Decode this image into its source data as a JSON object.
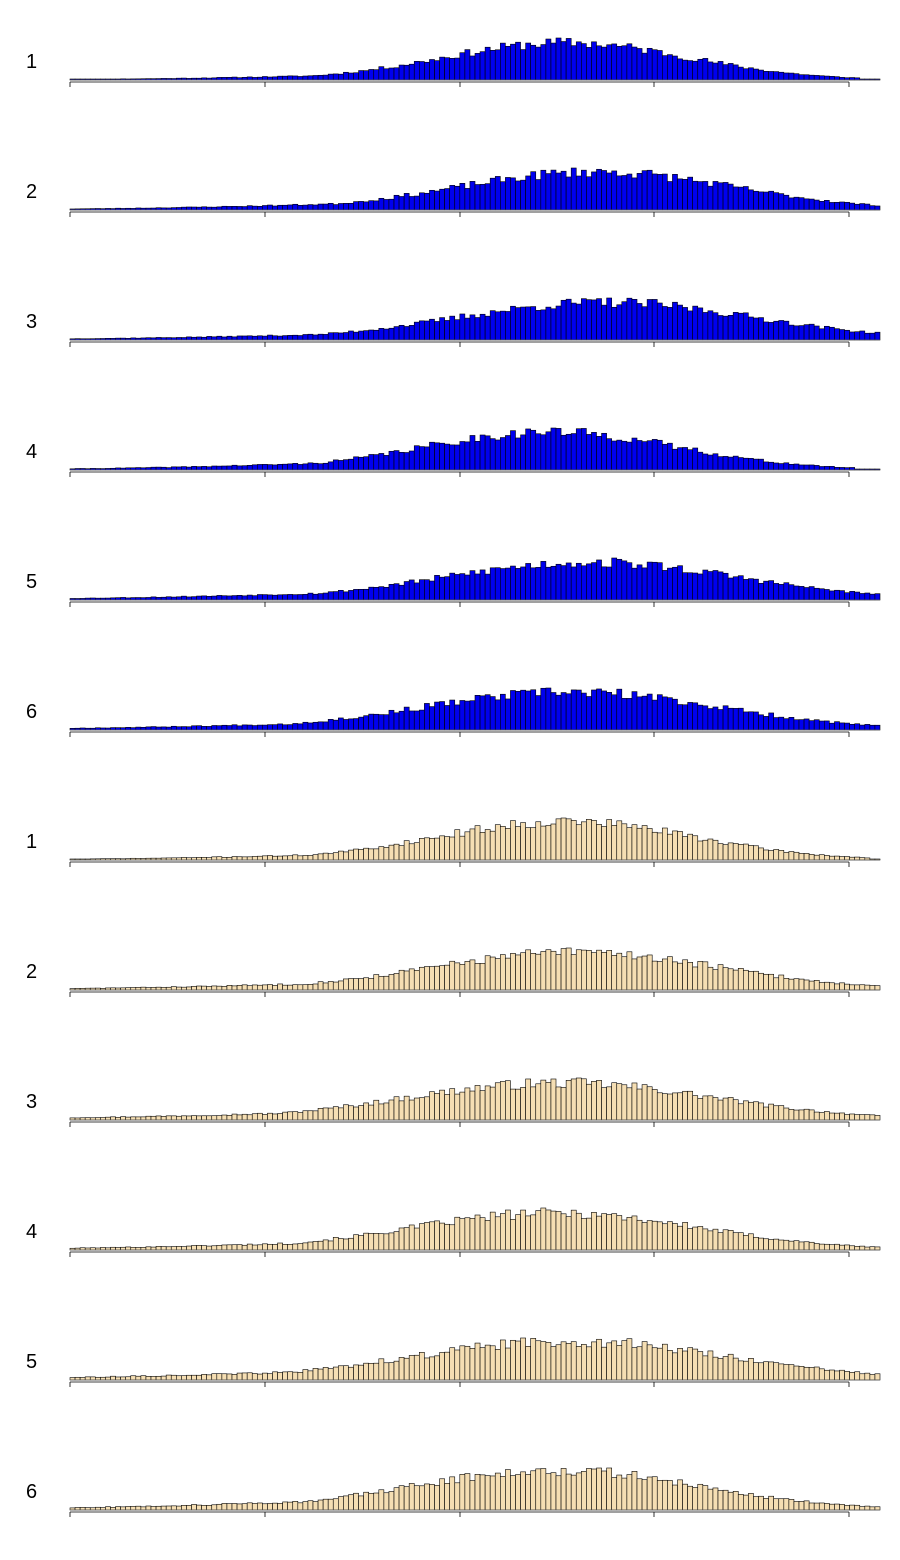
{
  "chart_data": [
    {
      "type": "bar",
      "label": "1",
      "color": "#0000ee",
      "x_range": [
        0,
        160
      ],
      "bins": 160,
      "peak": 98,
      "spread": 24,
      "left_tail": 0.22,
      "seed": 11,
      "ylim": [
        0,
        1
      ]
    },
    {
      "type": "bar",
      "label": "2",
      "color": "#0000ee",
      "x_range": [
        0,
        160
      ],
      "bins": 160,
      "peak": 104,
      "spread": 27,
      "left_tail": 0.28,
      "seed": 23,
      "ylim": [
        0,
        1
      ]
    },
    {
      "type": "bar",
      "label": "3",
      "color": "#0000ee",
      "x_range": [
        0,
        160
      ],
      "bins": 160,
      "peak": 106,
      "spread": 29,
      "left_tail": 0.26,
      "seed": 37,
      "ylim": [
        0,
        1
      ]
    },
    {
      "type": "bar",
      "label": "4",
      "color": "#0000ee",
      "x_range": [
        0,
        160
      ],
      "bins": 160,
      "peak": 95,
      "spread": 25,
      "left_tail": 0.3,
      "seed": 41,
      "ylim": [
        0,
        1
      ]
    },
    {
      "type": "bar",
      "label": "5",
      "color": "#0000ee",
      "x_range": [
        0,
        160
      ],
      "bins": 160,
      "peak": 103,
      "spread": 29,
      "left_tail": 0.3,
      "seed": 53,
      "ylim": [
        0,
        1
      ]
    },
    {
      "type": "bar",
      "label": "6",
      "color": "#0000ee",
      "x_range": [
        0,
        160
      ],
      "bins": 160,
      "peak": 99,
      "spread": 29,
      "left_tail": 0.28,
      "seed": 67,
      "ylim": [
        0,
        1
      ]
    },
    {
      "type": "bar",
      "label": "1",
      "color": "#f5deb3",
      "x_range": [
        0,
        160
      ],
      "bins": 160,
      "peak": 98,
      "spread": 25,
      "left_tail": 0.24,
      "seed": 71,
      "ylim": [
        0,
        1
      ]
    },
    {
      "type": "bar",
      "label": "2",
      "color": "#f5deb3",
      "x_range": [
        0,
        160
      ],
      "bins": 160,
      "peak": 100,
      "spread": 28,
      "left_tail": 0.28,
      "seed": 83,
      "ylim": [
        0,
        1
      ]
    },
    {
      "type": "bar",
      "label": "3",
      "color": "#f5deb3",
      "x_range": [
        0,
        160
      ],
      "bins": 160,
      "peak": 97,
      "spread": 30,
      "left_tail": 0.3,
      "seed": 97,
      "ylim": [
        0,
        1
      ]
    },
    {
      "type": "bar",
      "label": "4",
      "color": "#f5deb3",
      "x_range": [
        0,
        160
      ],
      "bins": 160,
      "peak": 96,
      "spread": 28,
      "left_tail": 0.3,
      "seed": 101,
      "ylim": [
        0,
        1
      ]
    },
    {
      "type": "bar",
      "label": "5",
      "color": "#f5deb3",
      "x_range": [
        0,
        160
      ],
      "bins": 160,
      "peak": 99,
      "spread": 31,
      "left_tail": 0.32,
      "seed": 113,
      "ylim": [
        0,
        1
      ]
    },
    {
      "type": "bar",
      "label": "6",
      "color": "#f5deb3",
      "x_range": [
        0,
        160
      ],
      "bins": 160,
      "peak": 96,
      "spread": 28,
      "left_tail": 0.34,
      "seed": 127,
      "ylim": [
        0,
        1
      ]
    }
  ]
}
